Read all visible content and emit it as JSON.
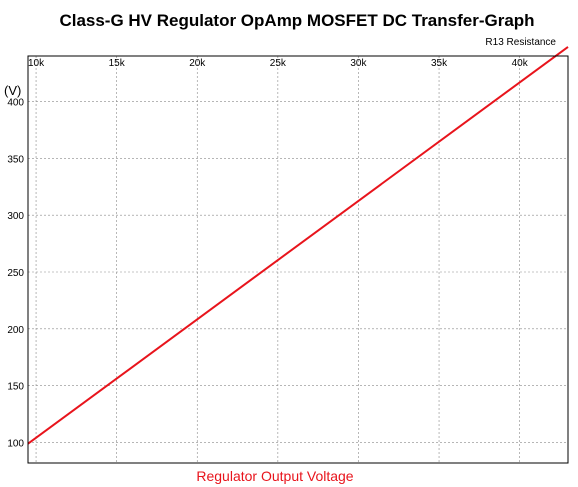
{
  "chart_data": {
    "type": "line",
    "title": "Class-G HV Regulator OpAmp MOSFET DC Transfer-Graph",
    "xlabel": "R13 Resistance",
    "ylabel": "(V)",
    "x_tick_labels": [
      "10k",
      "15k",
      "20k",
      "25k",
      "30k",
      "35k",
      "40k"
    ],
    "x_ticks": [
      10000,
      15000,
      20000,
      25000,
      30000,
      35000,
      40000
    ],
    "y_tick_labels": [
      "100",
      "150",
      "200",
      "250",
      "300",
      "350",
      "400"
    ],
    "y_ticks": [
      100,
      150,
      200,
      250,
      300,
      350,
      400
    ],
    "xlim": [
      9500,
      43000
    ],
    "ylim": [
      82,
      440
    ],
    "x_axis_position": "top",
    "grid": true,
    "legend_position": "bottom-center",
    "series": [
      {
        "name": "Regulator Output Voltage",
        "color": "#e8141c",
        "x": [
          9500,
          43000
        ],
        "y": [
          99,
          448
        ]
      }
    ]
  }
}
